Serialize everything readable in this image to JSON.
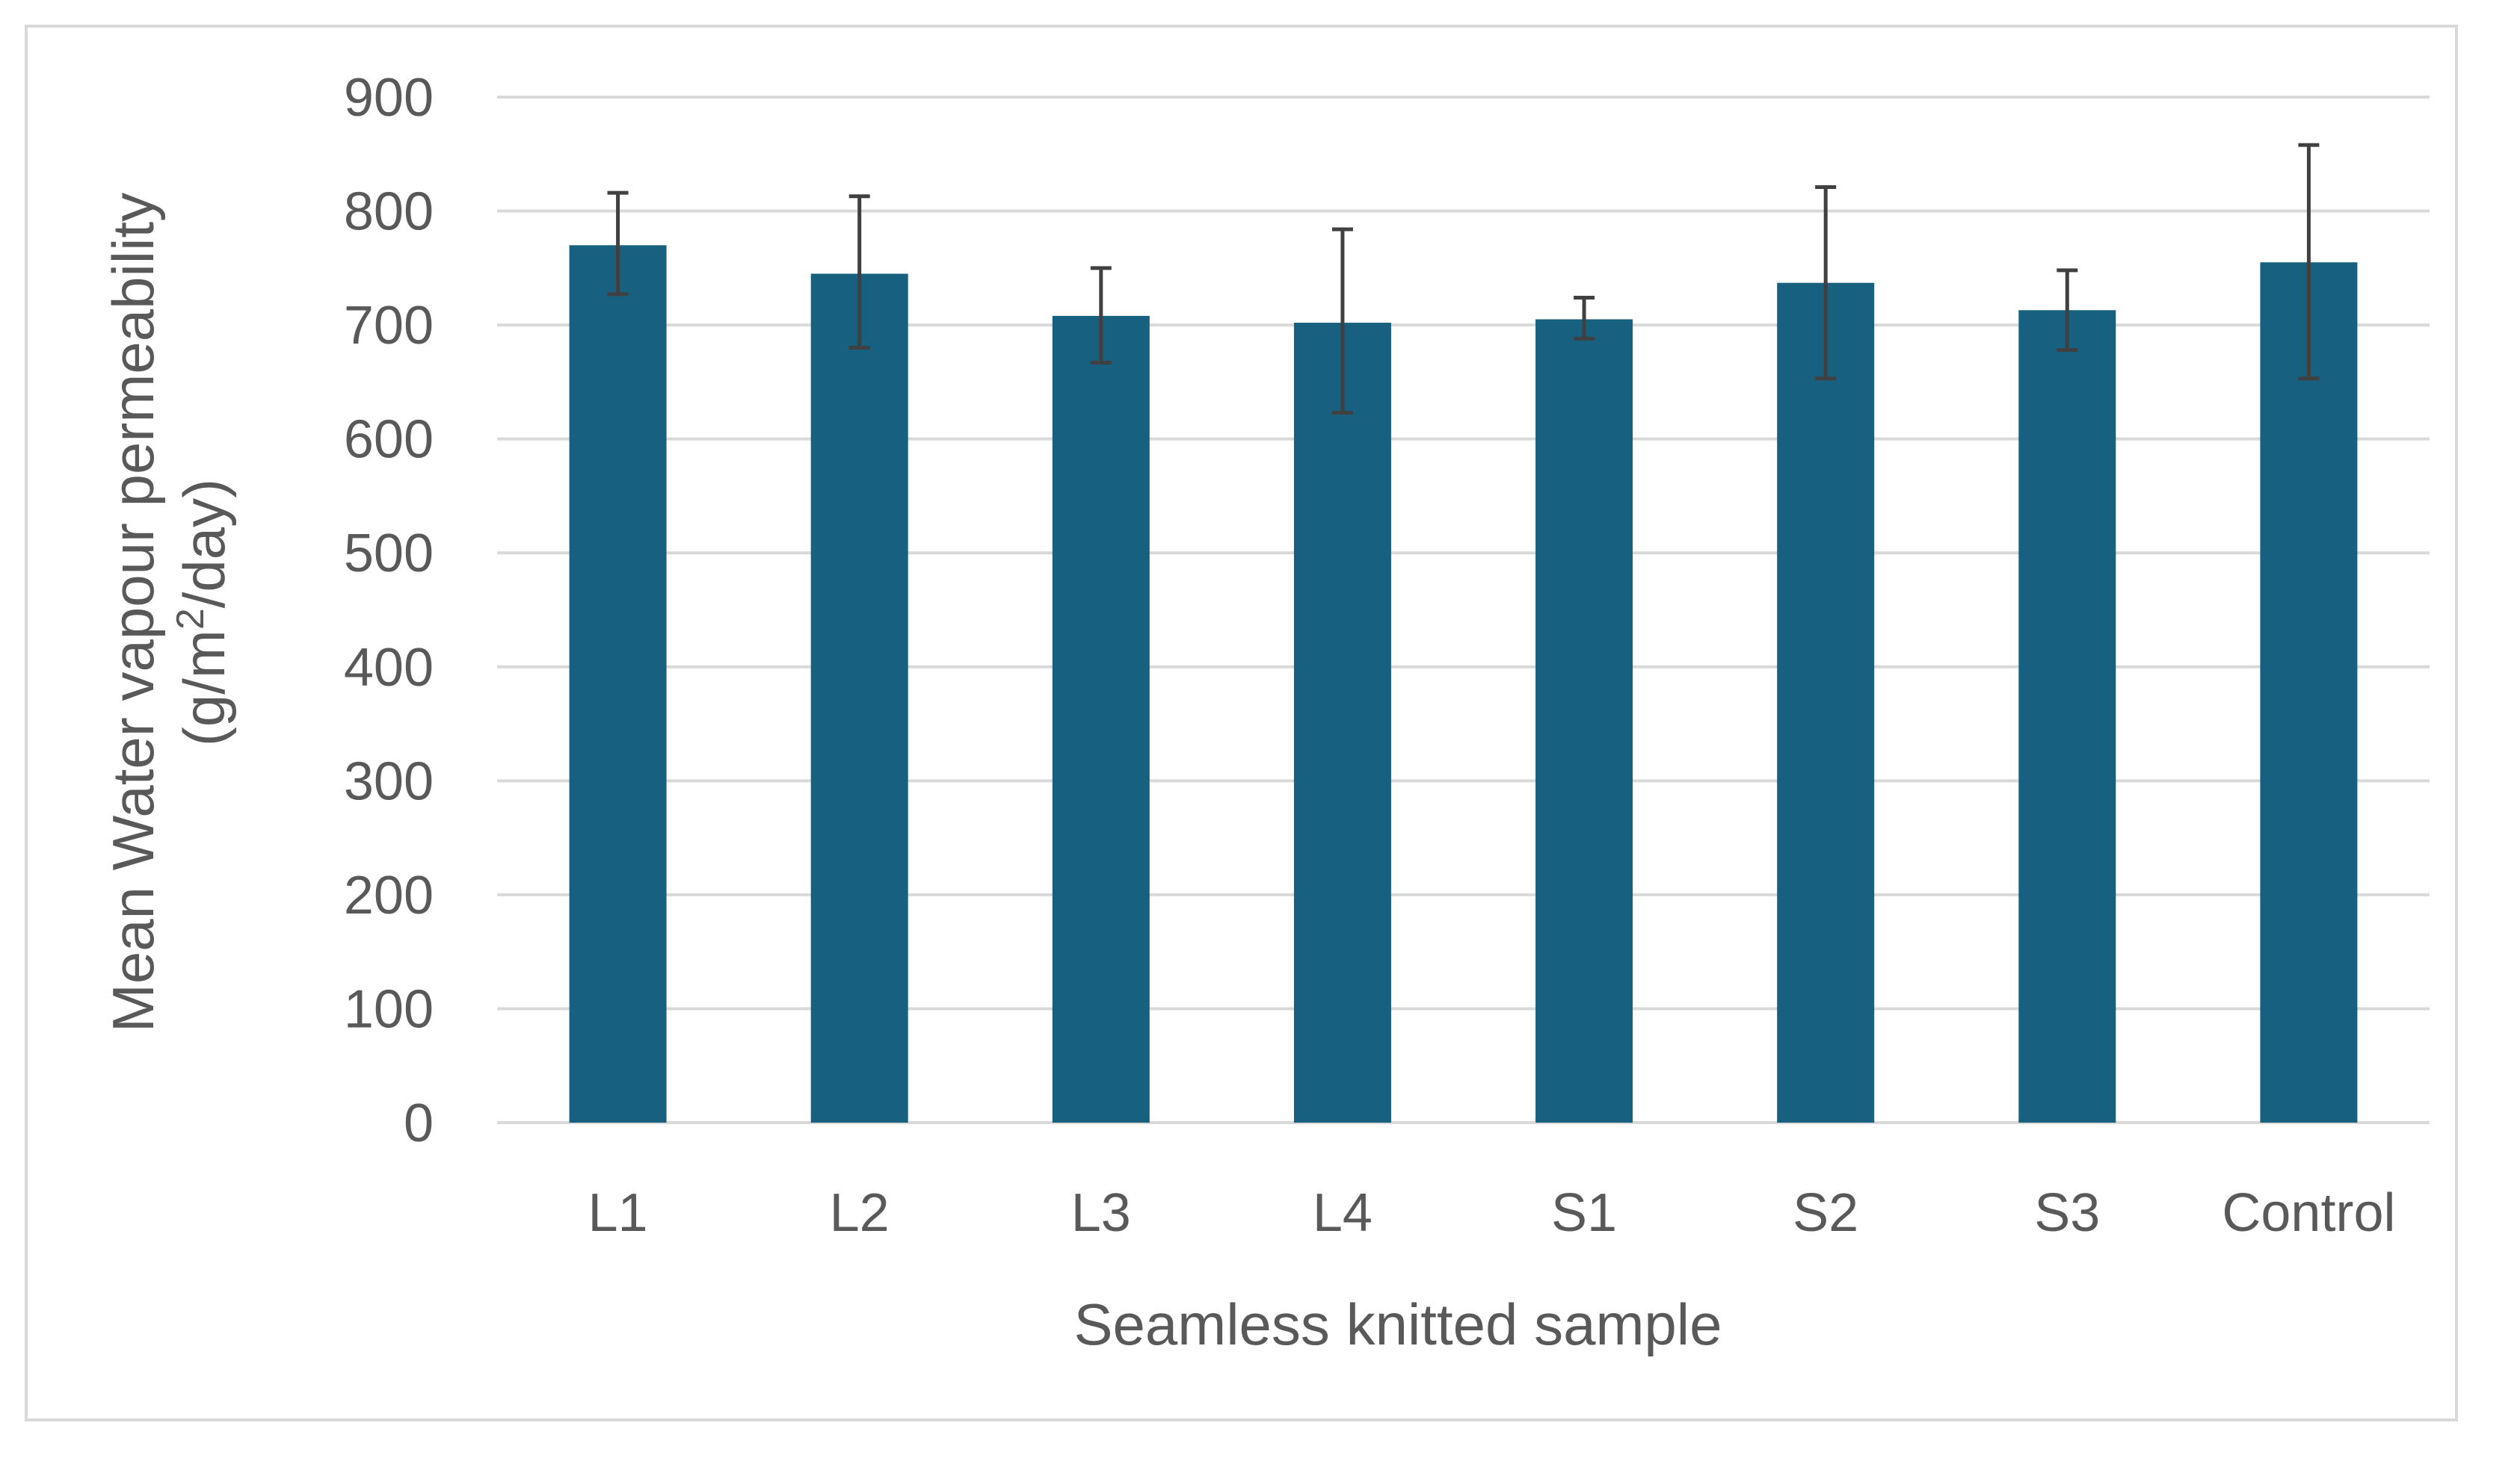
{
  "chart_data": {
    "type": "bar",
    "categories": [
      "L1",
      "L2",
      "L3",
      "L4",
      "S1",
      "S2",
      "S3",
      "Control"
    ],
    "values": [
      770,
      745,
      708,
      702,
      705,
      737,
      713,
      755
    ],
    "error_low": [
      727,
      680,
      667,
      623,
      688,
      653,
      678,
      653
    ],
    "error_high": [
      816,
      813,
      750,
      784,
      724,
      821,
      748,
      858
    ],
    "xlabel": "Seamless knitted sample",
    "ylabel_line1": "Mean Water vapour permeability",
    "ylabel_line2_pre": "(g/m",
    "ylabel_line2_sup": "2",
    "ylabel_line2_post": "/day)",
    "ylim": [
      0,
      900
    ],
    "yticks": [
      0,
      100,
      200,
      300,
      400,
      500,
      600,
      700,
      800,
      900
    ],
    "bar_color": "#17607f",
    "error_color": "#404040",
    "grid": true,
    "legend": "none"
  }
}
